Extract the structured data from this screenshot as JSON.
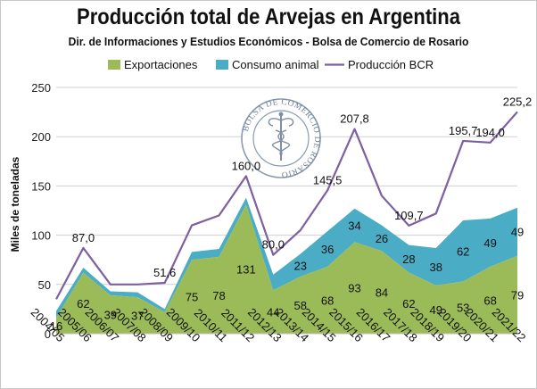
{
  "chart_data": {
    "type": "area",
    "title": "Producción total de Arvejas en Argentina",
    "subtitle": "Dir. de Informaciones y Estudios Económicos - Bolsa de Comercio de Rosario",
    "ylabel": "Miles de toneladas",
    "xlabel": "",
    "ylim": [
      0,
      250
    ],
    "yticks": [
      0,
      50,
      100,
      150,
      200,
      250
    ],
    "grid": true,
    "legend_position": "top",
    "categories": [
      "2004/05",
      "2005/06",
      "2006/07",
      "2007/08",
      "2008/09",
      "2009/10",
      "2010/11",
      "2011/12",
      "2012/13",
      "2013/14",
      "2014/15",
      "2015/16",
      "2016/17",
      "2017/18",
      "2018/19",
      "2019/20",
      "2020/21",
      "2021/22"
    ],
    "series": [
      {
        "name": "Exportaciones",
        "kind": "stacked-area",
        "color": "#9bbb59",
        "values": [
          16,
          62,
          39,
          37,
          22,
          75,
          78,
          131,
          44,
          58,
          68,
          93,
          84,
          62,
          49,
          53,
          68,
          79
        ],
        "data_labels": [
          "16",
          "62",
          "39",
          "37",
          "",
          "75",
          "78",
          "131",
          "44",
          "58",
          "68",
          "93",
          "84",
          "62",
          "49",
          "53",
          "68",
          "79"
        ]
      },
      {
        "name": "Consumo animal",
        "kind": "stacked-area",
        "color": "#4bacc6",
        "values": [
          7,
          5,
          4,
          5,
          3,
          8,
          8,
          7,
          16,
          23,
          36,
          34,
          26,
          28,
          38,
          62,
          49,
          49
        ],
        "data_labels": [
          "",
          "",
          "",
          "",
          "",
          "",
          "",
          "",
          "",
          "23",
          "36",
          "34",
          "26",
          "28",
          "38",
          "62",
          "49",
          "49"
        ]
      },
      {
        "name": "Producción BCR",
        "kind": "line",
        "color": "#7d60a0",
        "values": [
          35,
          87.0,
          50,
          50,
          51.6,
          110,
          120,
          160.0,
          80.0,
          105,
          145.5,
          207.8,
          140,
          109.7,
          122,
          195.7,
          194.0,
          225.2
        ],
        "data_labels": [
          "",
          "87,0",
          "",
          "",
          "51,6",
          "",
          "",
          "160,0",
          "80,0",
          "",
          "145,5",
          "207,8",
          "",
          "109,7",
          "",
          "195,7",
          "194,0",
          "225,2"
        ]
      }
    ]
  },
  "seal": {
    "text": "BOLSA DE COMERCIO DE ROSARIO"
  }
}
